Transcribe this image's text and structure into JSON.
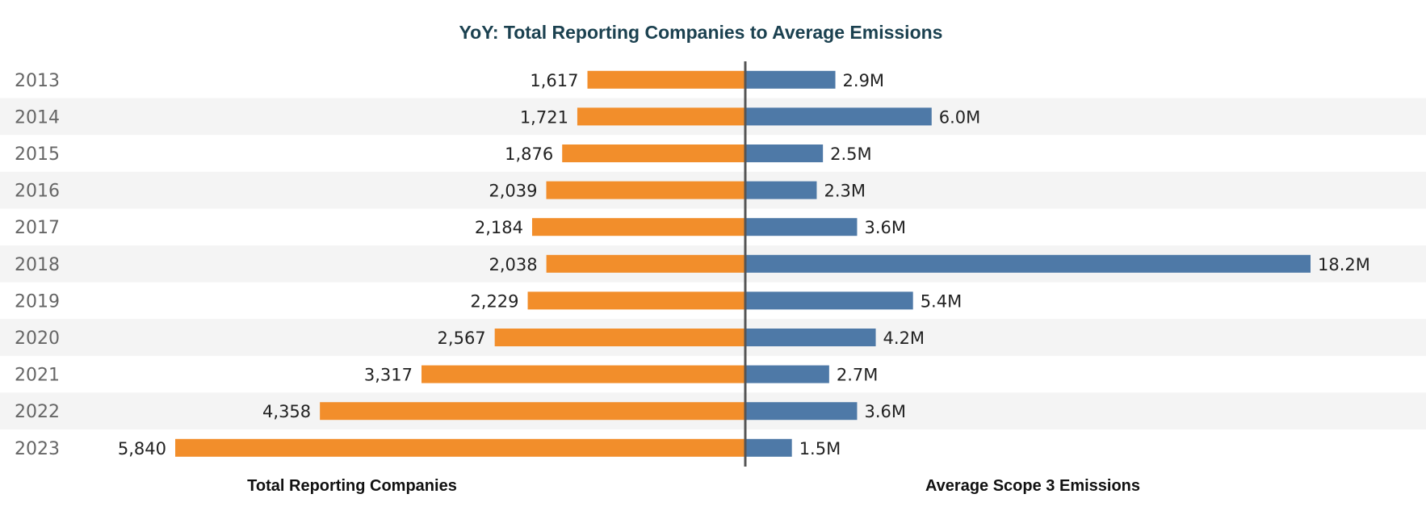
{
  "chart_data": {
    "type": "bar",
    "title": "YoY: Total Reporting Companies to Average Emissions",
    "categories": [
      "2013",
      "2014",
      "2015",
      "2016",
      "2017",
      "2018",
      "2019",
      "2020",
      "2021",
      "2022",
      "2023"
    ],
    "series": [
      {
        "name": "Total Reporting Companies",
        "values": [
          1617,
          1721,
          1876,
          2039,
          2184,
          2038,
          2229,
          2567,
          3317,
          4358,
          5840
        ],
        "labels": [
          "1,617",
          "1,721",
          "1,876",
          "2,039",
          "2,184",
          "2,038",
          "2,229",
          "2,567",
          "3,317",
          "4,358",
          "5,840"
        ],
        "color": "#F28E2B"
      },
      {
        "name": "Average Scope 3 Emissions",
        "values": [
          2.9,
          6.0,
          2.5,
          2.3,
          3.6,
          18.2,
          5.4,
          4.2,
          2.7,
          3.6,
          1.5
        ],
        "labels": [
          "2.9M",
          "6.0M",
          "2.5M",
          "2.3M",
          "3.6M",
          "18.2M",
          "5.4M",
          "4.2M",
          "2.7M",
          "3.6M",
          "1.5M"
        ],
        "unit": "M",
        "color": "#4E79A7"
      }
    ],
    "xlabel_left": "Total Reporting Companies",
    "xlabel_right": "Average Scope 3 Emissions",
    "layout": "diverging horizontal bars",
    "grid": false,
    "colors": {
      "title": "#1B4150",
      "year_label": "#666666",
      "row_band": "#F4F4F4",
      "center_line": "#555555"
    }
  }
}
